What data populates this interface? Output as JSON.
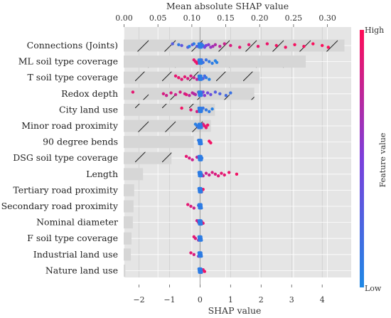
{
  "chart_data": {
    "type": "bar+beeswarm",
    "top_axis": {
      "label": "Mean absolute SHAP value",
      "ticks": [
        "0.00",
        "0.05",
        "0.10",
        "0.15",
        "0.20",
        "0.25",
        "0.30"
      ],
      "tick_values": [
        0,
        0.05,
        0.1,
        0.15,
        0.2,
        0.25,
        0.3
      ],
      "lim": [
        -0.0005,
        0.335
      ]
    },
    "bottom_axis": {
      "label": "SHAP value",
      "ticks": [
        "−2",
        "−1",
        "0",
        "1",
        "2",
        "3",
        "4"
      ],
      "tick_values": [
        -2,
        -1,
        0,
        1,
        2,
        3,
        4
      ],
      "lim": [
        -2.5,
        4.95
      ]
    },
    "features": [
      {
        "name": "Connections (Joints)",
        "mean_abs_shap": 0.325
      },
      {
        "name": "ML soil type coverage",
        "mean_abs_shap": 0.268
      },
      {
        "name": "T soil type coverage",
        "mean_abs_shap": 0.2
      },
      {
        "name": "Redox depth",
        "mean_abs_shap": 0.192
      },
      {
        "name": "City land use",
        "mean_abs_shap": 0.134
      },
      {
        "name": "Minor road proximity",
        "mean_abs_shap": 0.128
      },
      {
        "name": "90 degree bends",
        "mean_abs_shap": 0.103
      },
      {
        "name": "DSG soil type coverage",
        "mean_abs_shap": 0.07
      },
      {
        "name": "Length",
        "mean_abs_shap": 0.028
      },
      {
        "name": "Tertiary road proximity",
        "mean_abs_shap": 0.015
      },
      {
        "name": "Secondary road proximity",
        "mean_abs_shap": 0.014
      },
      {
        "name": "Nominal diameter",
        "mean_abs_shap": 0.013
      },
      {
        "name": "F soil type coverage",
        "mean_abs_shap": 0.011
      },
      {
        "name": "Industrial land use",
        "mean_abs_shap": 0.01
      },
      {
        "name": "Nature land use",
        "mean_abs_shap": 0.002
      }
    ],
    "beeswarm": [
      {
        "feature": "Connections (Joints)",
        "points": [
          [
            -0.9,
            0.3
          ],
          [
            -0.6,
            0.35
          ],
          [
            -0.4,
            0.3
          ],
          [
            -0.25,
            0.35
          ],
          [
            -0.1,
            0.3
          ],
          [
            0.05,
            0.4
          ],
          [
            0.2,
            0.5
          ],
          [
            0.35,
            0.6
          ],
          [
            0.5,
            0.7
          ],
          [
            0.65,
            0.75
          ],
          [
            0.8,
            0.8
          ],
          [
            1.0,
            0.85
          ],
          [
            1.3,
            0.9
          ],
          [
            1.6,
            0.9
          ],
          [
            1.9,
            0.92
          ],
          [
            2.2,
            0.93
          ],
          [
            2.5,
            0.95
          ],
          [
            2.8,
            0.95
          ],
          [
            3.1,
            0.97
          ],
          [
            3.4,
            0.97
          ],
          [
            3.7,
            0.98
          ],
          [
            4.0,
            0.99
          ],
          [
            4.2,
            1.0
          ],
          [
            -0.7,
            0.1
          ],
          [
            -0.35,
            0.05
          ],
          [
            -0.2,
            0.08
          ],
          [
            0.1,
            0.1
          ],
          [
            0.15,
            0.45
          ],
          [
            0.28,
            0.55
          ],
          [
            0.42,
            0.65
          ]
        ]
      },
      {
        "feature": "ML soil type coverage",
        "points": [
          [
            -0.2,
            0.9
          ],
          [
            -0.15,
            0.92
          ],
          [
            -0.1,
            0.95
          ],
          [
            0.0,
            0.3
          ],
          [
            0.1,
            0.2
          ],
          [
            0.2,
            0.15
          ],
          [
            0.3,
            0.1
          ],
          [
            0.4,
            0.08
          ],
          [
            0.5,
            0.05
          ],
          [
            0.55,
            0.05
          ],
          [
            0.05,
            0.35
          ],
          [
            -0.05,
            0.85
          ]
        ]
      },
      {
        "feature": "T soil type coverage",
        "points": [
          [
            -0.8,
            0.9
          ],
          [
            -0.7,
            0.92
          ],
          [
            -0.6,
            0.88
          ],
          [
            -0.5,
            0.9
          ],
          [
            -0.4,
            0.85
          ],
          [
            -0.3,
            0.85
          ],
          [
            -0.2,
            0.8
          ],
          [
            -0.1,
            0.75
          ],
          [
            0.0,
            0.6
          ],
          [
            0.1,
            0.3
          ],
          [
            0.15,
            0.2
          ],
          [
            0.2,
            0.1
          ],
          [
            0.3,
            0.05
          ]
        ]
      },
      {
        "feature": "Redox depth",
        "points": [
          [
            -2.2,
            0.9
          ],
          [
            -1.2,
            0.85
          ],
          [
            -1.1,
            0.8
          ],
          [
            -0.95,
            0.85
          ],
          [
            -0.8,
            0.8
          ],
          [
            -0.65,
            0.85
          ],
          [
            -0.5,
            0.8
          ],
          [
            -0.35,
            0.75
          ],
          [
            -0.25,
            0.75
          ],
          [
            -0.15,
            0.7
          ],
          [
            -0.05,
            0.65
          ],
          [
            0.05,
            0.6
          ],
          [
            0.15,
            0.55
          ],
          [
            0.25,
            0.45
          ],
          [
            0.35,
            0.4
          ],
          [
            0.5,
            0.3
          ],
          [
            0.65,
            0.25
          ],
          [
            0.85,
            0.2
          ],
          [
            1.0,
            0.15
          ],
          [
            -0.45,
            0.9
          ],
          [
            0.1,
            0.5
          ],
          [
            -0.2,
            0.72
          ]
        ]
      },
      {
        "feature": "City land use",
        "points": [
          [
            -0.6,
            0.95
          ],
          [
            -0.3,
            0.9
          ],
          [
            -0.1,
            0.85
          ],
          [
            0.0,
            0.5
          ],
          [
            0.05,
            0.2
          ],
          [
            0.1,
            0.15
          ],
          [
            0.2,
            0.1
          ],
          [
            0.3,
            0.08
          ],
          [
            0.4,
            0.05
          ]
        ]
      },
      {
        "feature": "Minor road proximity",
        "points": [
          [
            -0.15,
            0.05
          ],
          [
            -0.1,
            0.1
          ],
          [
            -0.05,
            0.15
          ],
          [
            0.0,
            0.3
          ],
          [
            0.05,
            0.6
          ],
          [
            0.1,
            0.85
          ],
          [
            0.15,
            0.9
          ],
          [
            0.2,
            0.92
          ],
          [
            0.25,
            0.95
          ]
        ]
      },
      {
        "feature": "90 degree bends",
        "points": [
          [
            -0.05,
            0.1
          ],
          [
            0.0,
            0.2
          ],
          [
            0.03,
            0.3
          ],
          [
            0.3,
            0.95
          ],
          [
            0.35,
            0.95
          ]
        ]
      },
      {
        "feature": "DSG soil type coverage",
        "points": [
          [
            -0.45,
            0.9
          ],
          [
            -0.35,
            0.85
          ],
          [
            -0.25,
            0.8
          ],
          [
            -0.1,
            0.75
          ],
          [
            0.0,
            0.2
          ],
          [
            0.03,
            0.15
          ],
          [
            0.06,
            0.1
          ]
        ]
      },
      {
        "feature": "Length",
        "points": [
          [
            0.0,
            0.1
          ],
          [
            0.05,
            0.7
          ],
          [
            0.1,
            0.75
          ],
          [
            0.2,
            0.8
          ],
          [
            0.3,
            0.8
          ],
          [
            0.4,
            0.85
          ],
          [
            0.5,
            0.85
          ],
          [
            0.6,
            0.88
          ],
          [
            0.7,
            0.9
          ],
          [
            0.8,
            0.9
          ],
          [
            0.95,
            0.92
          ],
          [
            1.2,
            0.95
          ]
        ]
      },
      {
        "feature": "Tertiary road proximity",
        "points": [
          [
            -0.02,
            0.1
          ],
          [
            0.0,
            0.2
          ],
          [
            0.05,
            0.9
          ],
          [
            0.1,
            0.95
          ]
        ]
      },
      {
        "feature": "Secondary road proximity",
        "points": [
          [
            -0.4,
            0.9
          ],
          [
            -0.3,
            0.85
          ],
          [
            -0.2,
            0.8
          ],
          [
            -0.05,
            0.5
          ],
          [
            0.0,
            0.1
          ],
          [
            0.03,
            0.1
          ]
        ]
      },
      {
        "feature": "Nominal diameter",
        "points": [
          [
            -0.1,
            0.8
          ],
          [
            -0.05,
            0.85
          ],
          [
            0.0,
            0.6
          ],
          [
            0.05,
            0.85
          ],
          [
            0.1,
            0.9
          ]
        ]
      },
      {
        "feature": "F soil type coverage",
        "points": [
          [
            -0.2,
            0.9
          ],
          [
            -0.15,
            0.85
          ],
          [
            -0.05,
            0.7
          ],
          [
            0.0,
            0.1
          ],
          [
            0.03,
            0.1
          ]
        ]
      },
      {
        "feature": "Industrial land use",
        "points": [
          [
            -0.3,
            0.9
          ],
          [
            -0.2,
            0.85
          ],
          [
            -0.05,
            0.6
          ],
          [
            0.0,
            0.1
          ],
          [
            0.03,
            0.1
          ]
        ]
      },
      {
        "feature": "Nature land use",
        "points": [
          [
            -0.02,
            0.1
          ],
          [
            0.0,
            0.1
          ],
          [
            0.05,
            0.8
          ],
          [
            0.1,
            0.9
          ],
          [
            0.15,
            0.95
          ]
        ]
      }
    ],
    "colorbar": {
      "label": "Feature value",
      "high": "High",
      "low": "Low",
      "low_color": "#1e88e5",
      "high_color": "#ff0d57"
    },
    "bar_color": "#d6d6d6",
    "background_color": "#e5e5e5",
    "grid": true,
    "bar_hatch": "diagonal"
  }
}
